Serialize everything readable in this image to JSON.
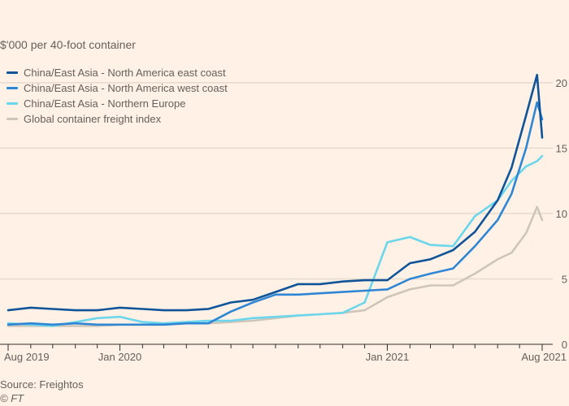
{
  "chart_data": {
    "type": "line",
    "title": "",
    "subtitle": "$'000 per 40-foot container",
    "xlabel": "",
    "ylabel": "",
    "ylim": [
      0,
      21
    ],
    "yticks": [
      0,
      5,
      10,
      15,
      20
    ],
    "xticks": [
      {
        "label": "Aug 2019",
        "date": "2019-08-01"
      },
      {
        "label": "Jan 2020",
        "date": "2020-01-01"
      },
      {
        "label": "Jan 2021",
        "date": "2021-01-01"
      },
      {
        "label": "Aug 2021",
        "date": "2021-08-01"
      }
    ],
    "grid": true,
    "legend_position": "top-left",
    "series": [
      {
        "name": "China/East Asia - North America east coast",
        "color": "#0f5499",
        "points": [
          [
            "2019-08-01",
            2.6
          ],
          [
            "2019-09-01",
            2.8
          ],
          [
            "2019-10-01",
            2.7
          ],
          [
            "2019-11-01",
            2.6
          ],
          [
            "2019-12-01",
            2.6
          ],
          [
            "2020-01-01",
            2.8
          ],
          [
            "2020-02-01",
            2.7
          ],
          [
            "2020-03-01",
            2.6
          ],
          [
            "2020-04-01",
            2.6
          ],
          [
            "2020-05-01",
            2.7
          ],
          [
            "2020-06-01",
            3.2
          ],
          [
            "2020-07-01",
            3.4
          ],
          [
            "2020-08-01",
            4.0
          ],
          [
            "2020-09-01",
            4.6
          ],
          [
            "2020-10-01",
            4.6
          ],
          [
            "2020-11-01",
            4.8
          ],
          [
            "2020-12-01",
            4.9
          ],
          [
            "2021-01-01",
            4.9
          ],
          [
            "2021-02-01",
            6.2
          ],
          [
            "2021-03-01",
            6.5
          ],
          [
            "2021-04-01",
            7.2
          ],
          [
            "2021-05-01",
            8.6
          ],
          [
            "2021-06-01",
            11.0
          ],
          [
            "2021-06-20",
            13.5
          ],
          [
            "2021-07-10",
            17.5
          ],
          [
            "2021-07-25",
            20.6
          ],
          [
            "2021-08-01",
            15.8
          ]
        ]
      },
      {
        "name": "China/East Asia - North America west coast",
        "color": "#2e86d4",
        "points": [
          [
            "2019-08-01",
            1.5
          ],
          [
            "2019-09-01",
            1.6
          ],
          [
            "2019-10-01",
            1.5
          ],
          [
            "2019-11-01",
            1.6
          ],
          [
            "2019-12-01",
            1.5
          ],
          [
            "2020-01-01",
            1.5
          ],
          [
            "2020-02-01",
            1.5
          ],
          [
            "2020-03-01",
            1.5
          ],
          [
            "2020-04-01",
            1.6
          ],
          [
            "2020-05-01",
            1.6
          ],
          [
            "2020-06-01",
            2.5
          ],
          [
            "2020-07-01",
            3.2
          ],
          [
            "2020-08-01",
            3.8
          ],
          [
            "2020-09-01",
            3.8
          ],
          [
            "2020-10-01",
            3.9
          ],
          [
            "2020-11-01",
            4.0
          ],
          [
            "2020-12-01",
            4.1
          ],
          [
            "2021-01-01",
            4.2
          ],
          [
            "2021-02-01",
            5.0
          ],
          [
            "2021-03-01",
            5.4
          ],
          [
            "2021-04-01",
            5.8
          ],
          [
            "2021-05-01",
            7.5
          ],
          [
            "2021-06-01",
            9.5
          ],
          [
            "2021-06-20",
            11.5
          ],
          [
            "2021-07-10",
            15.0
          ],
          [
            "2021-07-25",
            18.5
          ],
          [
            "2021-08-01",
            17.2
          ]
        ]
      },
      {
        "name": "China/East Asia - Northern Europe",
        "color": "#6bd6ec",
        "points": [
          [
            "2019-08-01",
            1.6
          ],
          [
            "2019-09-01",
            1.5
          ],
          [
            "2019-10-01",
            1.4
          ],
          [
            "2019-11-01",
            1.7
          ],
          [
            "2019-12-01",
            2.0
          ],
          [
            "2020-01-01",
            2.1
          ],
          [
            "2020-02-01",
            1.7
          ],
          [
            "2020-03-01",
            1.6
          ],
          [
            "2020-04-01",
            1.7
          ],
          [
            "2020-05-01",
            1.8
          ],
          [
            "2020-06-01",
            1.8
          ],
          [
            "2020-07-01",
            2.0
          ],
          [
            "2020-08-01",
            2.1
          ],
          [
            "2020-09-01",
            2.2
          ],
          [
            "2020-10-01",
            2.3
          ],
          [
            "2020-11-01",
            2.4
          ],
          [
            "2020-12-01",
            3.2
          ],
          [
            "2021-01-01",
            7.8
          ],
          [
            "2021-02-01",
            8.2
          ],
          [
            "2021-03-01",
            7.6
          ],
          [
            "2021-04-01",
            7.5
          ],
          [
            "2021-05-01",
            9.8
          ],
          [
            "2021-06-01",
            11.0
          ],
          [
            "2021-06-20",
            12.5
          ],
          [
            "2021-07-10",
            13.6
          ],
          [
            "2021-07-25",
            14.0
          ],
          [
            "2021-08-01",
            14.4
          ]
        ]
      },
      {
        "name": "Global container freight index",
        "color": "#cec6b9",
        "points": [
          [
            "2019-08-01",
            1.4
          ],
          [
            "2019-09-01",
            1.4
          ],
          [
            "2019-10-01",
            1.4
          ],
          [
            "2019-11-01",
            1.4
          ],
          [
            "2019-12-01",
            1.4
          ],
          [
            "2020-01-01",
            1.5
          ],
          [
            "2020-02-01",
            1.5
          ],
          [
            "2020-03-01",
            1.5
          ],
          [
            "2020-04-01",
            1.6
          ],
          [
            "2020-05-01",
            1.6
          ],
          [
            "2020-06-01",
            1.7
          ],
          [
            "2020-07-01",
            1.8
          ],
          [
            "2020-08-01",
            2.0
          ],
          [
            "2020-09-01",
            2.2
          ],
          [
            "2020-10-01",
            2.3
          ],
          [
            "2020-11-01",
            2.4
          ],
          [
            "2020-12-01",
            2.6
          ],
          [
            "2021-01-01",
            3.6
          ],
          [
            "2021-02-01",
            4.2
          ],
          [
            "2021-03-01",
            4.5
          ],
          [
            "2021-04-01",
            4.5
          ],
          [
            "2021-05-01",
            5.4
          ],
          [
            "2021-06-01",
            6.5
          ],
          [
            "2021-06-20",
            7.0
          ],
          [
            "2021-07-10",
            8.5
          ],
          [
            "2021-07-25",
            10.5
          ],
          [
            "2021-08-01",
            9.5
          ]
        ]
      }
    ],
    "source": "Source: Freightos",
    "credit": "© FT"
  }
}
